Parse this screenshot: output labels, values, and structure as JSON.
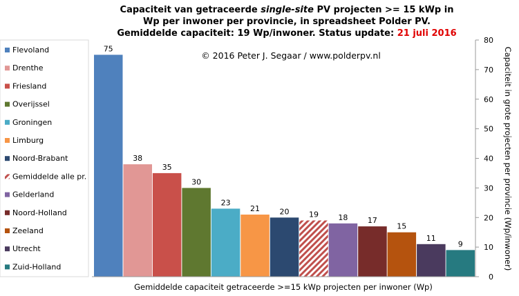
{
  "chart_data": {
    "type": "bar",
    "title_line1_pre": "Capaciteit van getraceerde ",
    "title_line1_italic": "single-site",
    "title_line1_post": " PV projecten >= 15 kWp in",
    "title_line2": "Wp per inwoner per provincie, in spreadsheet Polder PV.",
    "title_line3_main": "Gemiddelde capaciteit: 19 Wp/inwoner.  Status update: ",
    "title_line3_date": "21 juli 2016",
    "copyright": "© 2016 Peter J. Segaar / www.polderpv.nl",
    "xlabel": "Gemiddelde capaciteit getraceerde >=15 kWp projecten per inwoner (Wp)",
    "ylabel": "Capaciteit in grote projecten per provincie (Wp/inwoner)",
    "ylim": [
      0,
      80
    ],
    "yticks": [
      0,
      10,
      20,
      30,
      40,
      50,
      60,
      70,
      80
    ],
    "grid": false,
    "legend_position": "left",
    "categories": [
      "Flevoland",
      "Drenthe",
      "Friesland",
      "Overijssel",
      "Groningen",
      "Limburg",
      "Noord-Brabant",
      "Gemiddelde alle pr.",
      "Gelderland",
      "Noord-Holland",
      "Zeeland",
      "Utrecht",
      "Zuid-Holland"
    ],
    "values": [
      75,
      38,
      35,
      30,
      23,
      21,
      20,
      19,
      18,
      17,
      15,
      11,
      9
    ],
    "colors": [
      "#4f81bd",
      "#e19795",
      "#c9504a",
      "#5f7830",
      "#4bacc6",
      "#f79646",
      "#2c4970",
      "#c0504d",
      "#8064a2",
      "#772c2a",
      "#b5530e",
      "#4a3a5e",
      "#267a80"
    ],
    "hatched": [
      false,
      false,
      false,
      false,
      false,
      false,
      false,
      true,
      false,
      false,
      false,
      false,
      false
    ],
    "label_colors": [
      "#000000",
      "#000000",
      "#000000",
      "#000000",
      "#000000",
      "#000000",
      "#000000",
      "#c00000",
      "#000000",
      "#000000",
      "#000000",
      "#000000",
      "#000000"
    ]
  }
}
